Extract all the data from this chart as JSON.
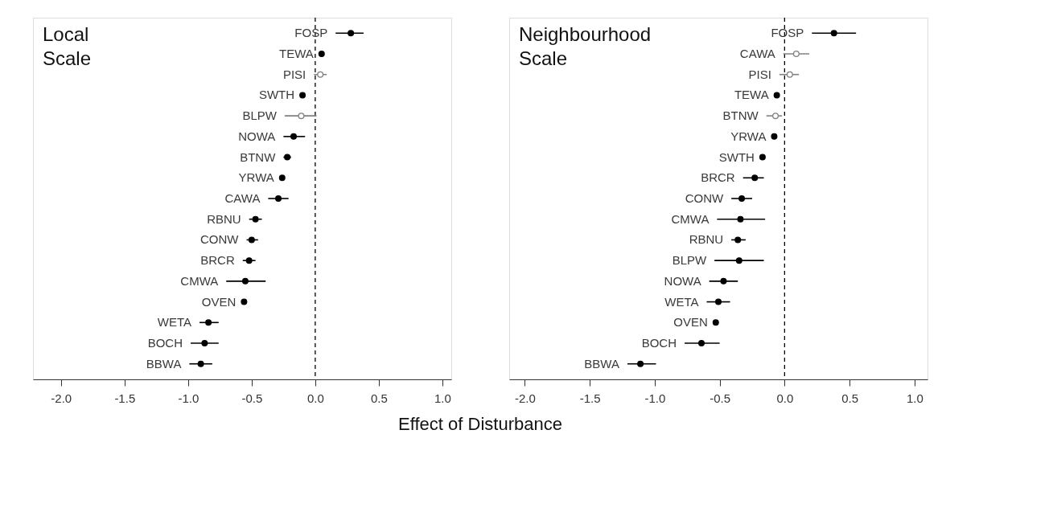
{
  "chart_data": [
    {
      "type": "scatter",
      "orientation": "horizontal",
      "title": "Local Scale",
      "xlabel": "Effect of Disturbance",
      "categories": [
        "FOSP",
        "TEWA",
        "PISI",
        "SWTH",
        "BLPW",
        "NOWA",
        "BTNW",
        "YRWA",
        "CAWA",
        "RBNU",
        "CONW",
        "BRCR",
        "CMWA",
        "OVEN",
        "WETA",
        "BOCH",
        "BBWA"
      ],
      "series": [
        {
          "color": "#000000",
          "values": [
            0.28,
            0.05,
            null,
            -0.1,
            null,
            -0.17,
            -0.22,
            -0.26,
            -0.29,
            -0.47,
            -0.5,
            -0.52,
            -0.55,
            -0.56,
            -0.84,
            -0.87,
            -0.9
          ],
          "errors": [
            [
              0.16,
              0.38
            ],
            null,
            null,
            null,
            null,
            [
              -0.25,
              -0.08
            ],
            [
              -0.25,
              -0.19
            ],
            null,
            [
              -0.37,
              -0.21
            ],
            [
              -0.52,
              -0.42
            ],
            [
              -0.54,
              -0.45
            ],
            [
              -0.57,
              -0.47
            ],
            [
              -0.7,
              -0.39
            ],
            null,
            [
              -0.91,
              -0.76
            ],
            [
              -0.98,
              -0.76
            ],
            [
              -0.99,
              -0.81
            ]
          ]
        },
        {
          "color": "#808080",
          "values": [
            null,
            null,
            0.04,
            null,
            -0.11,
            null,
            null,
            null,
            null,
            null,
            null,
            null,
            null,
            null,
            null,
            null,
            null
          ],
          "errors": [
            null,
            null,
            [
              -0.01,
              0.09
            ],
            null,
            [
              -0.24,
              0.01
            ],
            null,
            null,
            null,
            null,
            null,
            null,
            null,
            null,
            null,
            null,
            null,
            null
          ]
        }
      ],
      "xlim": [
        -2.22,
        1.07
      ],
      "xticks": [
        {
          "value": -2,
          "label": "-2.0"
        },
        {
          "value": -1.5,
          "label": "-1.5"
        },
        {
          "value": -1,
          "label": "-1.0"
        },
        {
          "value": -0.5,
          "label": "-0.5"
        },
        {
          "value": 0,
          "label": "0.0"
        },
        {
          "value": 0.5,
          "label": "0.5"
        },
        {
          "value": 1,
          "label": "1.0"
        }
      ],
      "ref_lines": [
        {
          "axis": "x",
          "value": 0,
          "line_style": "dashed",
          "color": "#000000"
        }
      ],
      "marker": "circle",
      "grid": false
    },
    {
      "type": "scatter",
      "orientation": "horizontal",
      "title": "Neighbourhood Scale",
      "categories": [
        "FOSP",
        "CAWA",
        "PISI",
        "TEWA",
        "BTNW",
        "YRWA",
        "SWTH",
        "BRCR",
        "CONW",
        "CMWA",
        "RBNU",
        "BLPW",
        "NOWA",
        "WETA",
        "OVEN",
        "BOCH",
        "BBWA"
      ],
      "series": [
        {
          "color": "#000000",
          "values": [
            0.38,
            null,
            null,
            -0.06,
            null,
            -0.08,
            -0.17,
            -0.23,
            -0.33,
            -0.34,
            -0.36,
            -0.35,
            -0.47,
            -0.51,
            -0.53,
            -0.64,
            -1.11
          ],
          "errors": [
            [
              0.21,
              0.55
            ],
            null,
            null,
            null,
            null,
            null,
            null,
            [
              -0.32,
              -0.16
            ],
            [
              -0.41,
              -0.25
            ],
            [
              -0.52,
              -0.15
            ],
            [
              -0.41,
              -0.3
            ],
            [
              -0.54,
              -0.16
            ],
            [
              -0.58,
              -0.36
            ],
            [
              -0.6,
              -0.42
            ],
            null,
            [
              -0.77,
              -0.5
            ],
            [
              -1.21,
              -0.99
            ]
          ]
        },
        {
          "color": "#808080",
          "values": [
            null,
            0.09,
            0.04,
            null,
            -0.07,
            null,
            null,
            null,
            null,
            null,
            null,
            null,
            null,
            null,
            null,
            null,
            null
          ],
          "errors": [
            null,
            [
              -0.01,
              0.19
            ],
            [
              -0.04,
              0.11
            ],
            null,
            [
              -0.14,
              -0.02
            ],
            null,
            null,
            null,
            null,
            null,
            null,
            null,
            null,
            null,
            null,
            null,
            null
          ]
        }
      ],
      "xlim": [
        -2.12,
        1.1
      ],
      "xticks": [
        {
          "value": -2,
          "label": "-2.0"
        },
        {
          "value": -1.5,
          "label": "-1.5"
        },
        {
          "value": -1,
          "label": "-1.0"
        },
        {
          "value": -0.5,
          "label": "-0.5"
        },
        {
          "value": 0,
          "label": "0.0"
        },
        {
          "value": 0.5,
          "label": "0.5"
        },
        {
          "value": 1,
          "label": "1.0"
        }
      ],
      "ref_lines": [
        {
          "axis": "x",
          "value": 0,
          "line_style": "dashed",
          "color": "#000000"
        }
      ],
      "marker": "circle",
      "grid": false
    }
  ]
}
